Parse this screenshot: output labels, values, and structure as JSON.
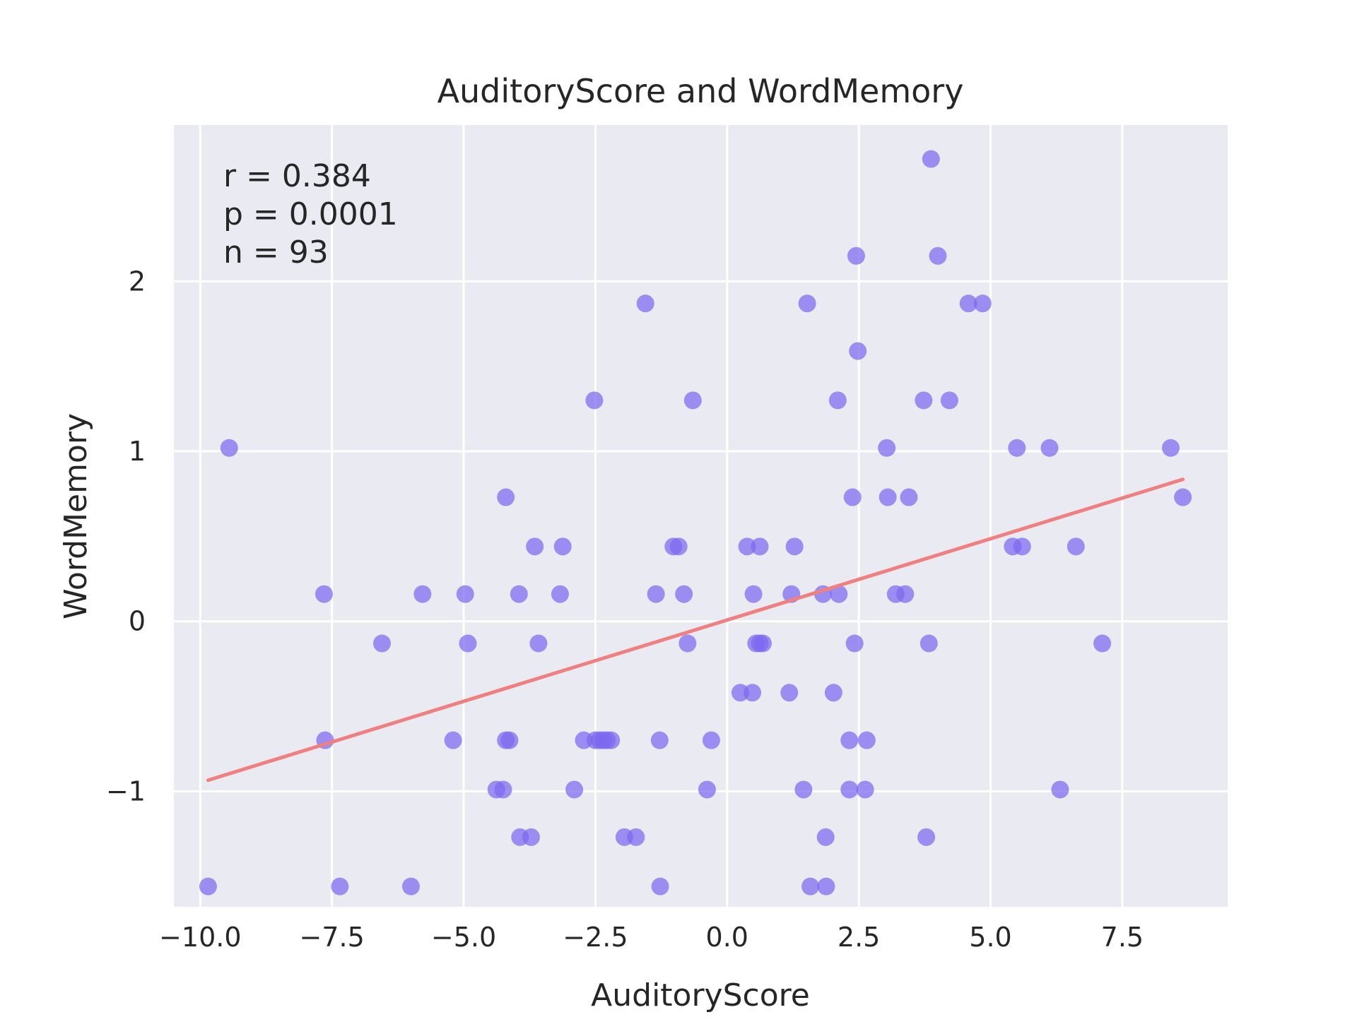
{
  "chart_data": {
    "type": "scatter",
    "title": "AuditoryScore and WordMemory",
    "xlabel": "AuditoryScore",
    "ylabel": "WordMemory",
    "xlim": [
      -10.5,
      9.5
    ],
    "ylim": [
      -1.68,
      2.92
    ],
    "x_ticks": [
      -10.0,
      -7.5,
      -5.0,
      -2.5,
      0.0,
      2.5,
      5.0,
      7.5
    ],
    "x_tick_labels": [
      "−10.0",
      "−7.5",
      "−5.0",
      "−2.5",
      "0.0",
      "2.5",
      "5.0",
      "7.5"
    ],
    "y_ticks": [
      -1,
      0,
      1,
      2
    ],
    "y_tick_labels": [
      "−1",
      "0",
      "1",
      "2"
    ],
    "grid": true,
    "background": "#eaeaf2",
    "point_color": "#7b68ee",
    "line_color": "#f08080",
    "annotations": [
      "r = 0.384",
      "p = 0.0001",
      "n = 93"
    ],
    "regression_line": {
      "x": [
        -9.85,
        8.65
      ],
      "y": [
        -0.935,
        0.835
      ]
    },
    "points": [
      {
        "x": 3.87,
        "y": 2.72
      },
      {
        "x": 2.45,
        "y": 2.15
      },
      {
        "x": 4.0,
        "y": 2.15
      },
      {
        "x": -1.55,
        "y": 1.87
      },
      {
        "x": 1.52,
        "y": 1.87
      },
      {
        "x": 4.58,
        "y": 1.87
      },
      {
        "x": 4.85,
        "y": 1.87
      },
      {
        "x": 2.48,
        "y": 1.59
      },
      {
        "x": -2.52,
        "y": 1.3
      },
      {
        "x": -0.65,
        "y": 1.3
      },
      {
        "x": 2.1,
        "y": 1.3
      },
      {
        "x": 3.73,
        "y": 1.3
      },
      {
        "x": 4.22,
        "y": 1.3
      },
      {
        "x": -9.45,
        "y": 1.02
      },
      {
        "x": 3.03,
        "y": 1.02
      },
      {
        "x": 5.5,
        "y": 1.02
      },
      {
        "x": 6.12,
        "y": 1.02
      },
      {
        "x": 8.42,
        "y": 1.02
      },
      {
        "x": -4.2,
        "y": 0.73
      },
      {
        "x": 2.38,
        "y": 0.73
      },
      {
        "x": 3.05,
        "y": 0.73
      },
      {
        "x": 3.45,
        "y": 0.73
      },
      {
        "x": 8.65,
        "y": 0.73
      },
      {
        "x": -3.65,
        "y": 0.44
      },
      {
        "x": -3.12,
        "y": 0.44
      },
      {
        "x": -1.02,
        "y": 0.44
      },
      {
        "x": -0.92,
        "y": 0.44
      },
      {
        "x": 0.38,
        "y": 0.44
      },
      {
        "x": 0.62,
        "y": 0.44
      },
      {
        "x": 1.28,
        "y": 0.44
      },
      {
        "x": 5.42,
        "y": 0.44
      },
      {
        "x": 5.6,
        "y": 0.44
      },
      {
        "x": 6.62,
        "y": 0.44
      },
      {
        "x": -7.65,
        "y": 0.16
      },
      {
        "x": -5.78,
        "y": 0.16
      },
      {
        "x": -4.97,
        "y": 0.16
      },
      {
        "x": -3.95,
        "y": 0.16
      },
      {
        "x": -3.17,
        "y": 0.16
      },
      {
        "x": -1.35,
        "y": 0.16
      },
      {
        "x": -0.82,
        "y": 0.16
      },
      {
        "x": 0.5,
        "y": 0.16
      },
      {
        "x": 1.22,
        "y": 0.16
      },
      {
        "x": 1.82,
        "y": 0.16
      },
      {
        "x": 2.12,
        "y": 0.16
      },
      {
        "x": 3.2,
        "y": 0.16
      },
      {
        "x": 3.38,
        "y": 0.16
      },
      {
        "x": -6.55,
        "y": -0.13
      },
      {
        "x": -4.92,
        "y": -0.13
      },
      {
        "x": -3.58,
        "y": -0.13
      },
      {
        "x": -0.75,
        "y": -0.13
      },
      {
        "x": 0.55,
        "y": -0.13
      },
      {
        "x": 0.62,
        "y": -0.13
      },
      {
        "x": 0.68,
        "y": -0.13
      },
      {
        "x": 2.42,
        "y": -0.13
      },
      {
        "x": 3.83,
        "y": -0.13
      },
      {
        "x": 7.12,
        "y": -0.13
      },
      {
        "x": 0.25,
        "y": -0.42
      },
      {
        "x": 0.48,
        "y": -0.42
      },
      {
        "x": 1.18,
        "y": -0.42
      },
      {
        "x": 2.02,
        "y": -0.42
      },
      {
        "x": -7.63,
        "y": -0.7
      },
      {
        "x": -5.2,
        "y": -0.7
      },
      {
        "x": -4.2,
        "y": -0.7
      },
      {
        "x": -4.13,
        "y": -0.7
      },
      {
        "x": -2.72,
        "y": -0.7
      },
      {
        "x": -2.5,
        "y": -0.7
      },
      {
        "x": -2.42,
        "y": -0.7
      },
      {
        "x": -2.35,
        "y": -0.7
      },
      {
        "x": -2.28,
        "y": -0.7
      },
      {
        "x": -2.2,
        "y": -0.7
      },
      {
        "x": -1.28,
        "y": -0.7
      },
      {
        "x": -0.3,
        "y": -0.7
      },
      {
        "x": 2.32,
        "y": -0.7
      },
      {
        "x": 2.65,
        "y": -0.7
      },
      {
        "x": -4.38,
        "y": -0.99
      },
      {
        "x": -4.25,
        "y": -0.99
      },
      {
        "x": -2.9,
        "y": -0.99
      },
      {
        "x": -0.38,
        "y": -0.99
      },
      {
        "x": 1.45,
        "y": -0.99
      },
      {
        "x": 2.32,
        "y": -0.99
      },
      {
        "x": 2.62,
        "y": -0.99
      },
      {
        "x": 6.32,
        "y": -0.99
      },
      {
        "x": -3.93,
        "y": -1.27
      },
      {
        "x": -3.72,
        "y": -1.27
      },
      {
        "x": -1.95,
        "y": -1.27
      },
      {
        "x": -1.73,
        "y": -1.27
      },
      {
        "x": 1.87,
        "y": -1.27
      },
      {
        "x": 3.78,
        "y": -1.27
      },
      {
        "x": -9.85,
        "y": -1.56
      },
      {
        "x": -7.35,
        "y": -1.56
      },
      {
        "x": -6.0,
        "y": -1.56
      },
      {
        "x": -1.27,
        "y": -1.56
      },
      {
        "x": 1.58,
        "y": -1.56
      },
      {
        "x": 1.88,
        "y": -1.56
      }
    ]
  }
}
